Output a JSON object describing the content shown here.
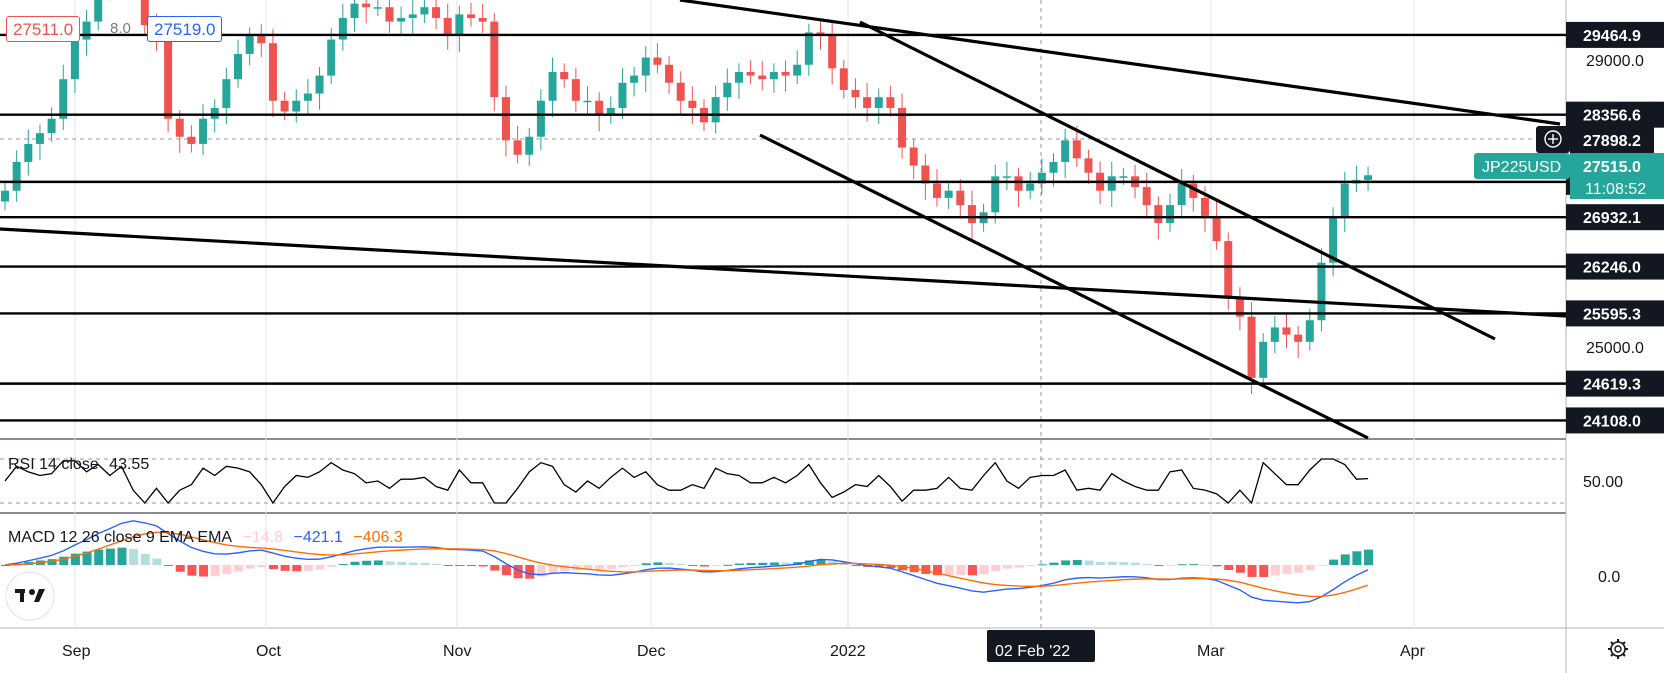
{
  "symbol": "JP225USD",
  "price_badges": {
    "bid": "27511.0",
    "spread": "8.0",
    "ask": "27519.0"
  },
  "last_price": {
    "value": "27515.0",
    "countdown": "11:08:52"
  },
  "crosshair": {
    "price": "27898.2",
    "time": "02 Feb '22"
  },
  "rsi_legend": {
    "title": "RSI 14 close",
    "value": "43.55",
    "level": "50.00"
  },
  "macd_legend": {
    "title": "MACD 12 26 close 9 EMA EMA",
    "hist": "−14.8",
    "macd": "−421.1",
    "signal": "−406.3",
    "zero": "0.0"
  },
  "colors": {
    "up": "#26a69a",
    "down": "#ef5350",
    "macd_line": "#2962ff",
    "signal_line": "#ff6d00",
    "hist_pos_strong": "#26a69a",
    "hist_pos_weak": "#b2dfdb",
    "hist_neg_strong": "#ff5252",
    "hist_neg_weak": "#ffcdd2",
    "badge_bid": "#ef5350",
    "badge_ask": "#2962ff"
  },
  "chart_data": {
    "type": "candlestick",
    "y_range": [
      23850,
      29950
    ],
    "x_labels": [
      "Sep",
      "Oct",
      "Nov",
      "Dec",
      "2022",
      "Mar",
      "Apr"
    ],
    "price_axis_labels": [
      {
        "value": 29000,
        "label": "29000.0"
      },
      {
        "value": 25000,
        "label": "25000.0"
      }
    ],
    "horizontal_levels": [
      {
        "value": 29464.9,
        "label": "29464.9"
      },
      {
        "value": 28356.6,
        "label": "28356.6"
      },
      {
        "value": 27422.9,
        "label": "27422.9"
      },
      {
        "value": 26932.1,
        "label": "26932.1"
      },
      {
        "value": 26246.0,
        "label": "26246.0"
      },
      {
        "value": 25595.3,
        "label": "25595.3"
      },
      {
        "value": 24619.3,
        "label": "24619.3"
      },
      {
        "value": 24108.0,
        "label": "24108.0"
      }
    ],
    "close_series": [
      27300,
      27700,
      27950,
      28100,
      28300,
      28850,
      29400,
      29650,
      30100,
      30250,
      30650,
      30400,
      29600,
      29400,
      28300,
      28050,
      27950,
      28300,
      28450,
      28850,
      29200,
      29450,
      29350,
      28550,
      28400,
      28550,
      28650,
      28900,
      29400,
      29700,
      29900,
      29850,
      29850,
      29650,
      29700,
      29750,
      29850,
      29700,
      29450,
      29750,
      29700,
      29650,
      28600,
      28000,
      27800,
      28050,
      28550,
      28950,
      28850,
      28550,
      28550,
      28350,
      28450,
      28800,
      28900,
      29150,
      29050,
      28800,
      28550,
      28450,
      28250,
      28600,
      28800,
      28950,
      28900,
      28850,
      28950,
      28900,
      29050,
      29500,
      29450,
      29000,
      28700,
      28600,
      28450,
      28600,
      28450,
      27900,
      27650,
      27400,
      27200,
      27300,
      27100,
      26850,
      27000,
      27500,
      27500,
      27300,
      27400,
      27550,
      27700,
      28000,
      27750,
      27550,
      27300,
      27500,
      27500,
      27350,
      27100,
      26850,
      27100,
      27400,
      27200,
      26950,
      26600,
      25800,
      25550,
      24700,
      25200,
      25400,
      25300,
      25200,
      25500,
      26300,
      26950,
      27400,
      27450,
      27515
    ],
    "rsi_values": [
      43.55
    ],
    "macd_values": [
      -421.1
    ],
    "signal_values": [
      -406.3
    ],
    "histogram_values": [
      -14.8
    ]
  }
}
